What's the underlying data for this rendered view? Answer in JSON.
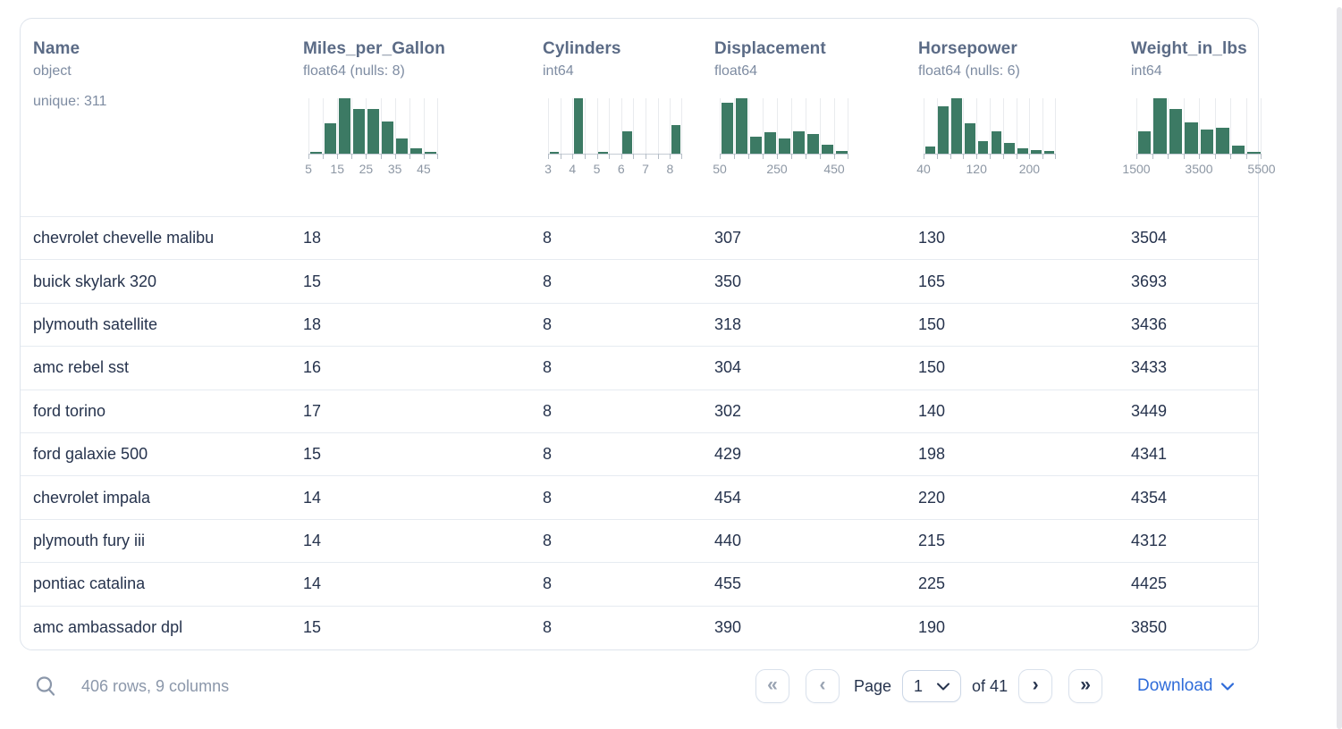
{
  "table": {
    "columns": [
      {
        "name": "Name",
        "dtype": "object",
        "extra": "unique: 311"
      },
      {
        "name": "Miles_per_Gallon",
        "dtype": "float64 (nulls: 8)",
        "histogram": {
          "type": "bar",
          "heights": [
            3,
            55,
            100,
            80,
            80,
            58,
            28,
            10,
            3
          ],
          "ticks": [
            {
              "label": "5",
              "at": 0
            },
            {
              "label": "15",
              "at": 2
            },
            {
              "label": "25",
              "at": 4
            },
            {
              "label": "35",
              "at": 6
            },
            {
              "label": "45",
              "at": 8
            }
          ]
        }
      },
      {
        "name": "Cylinders",
        "dtype": "int64",
        "histogram": {
          "type": "bar",
          "heights": [
            3,
            0,
            100,
            0,
            2,
            0,
            40,
            0,
            0,
            0,
            52
          ],
          "ticks": [
            {
              "label": "3",
              "at": 0
            },
            {
              "label": "4",
              "at": 2
            },
            {
              "label": "5",
              "at": 4
            },
            {
              "label": "6",
              "at": 6
            },
            {
              "label": "7",
              "at": 8
            },
            {
              "label": "8",
              "at": 10
            }
          ]
        }
      },
      {
        "name": "Displacement",
        "dtype": "float64",
        "histogram": {
          "type": "bar",
          "heights": [
            92,
            100,
            30,
            38,
            27,
            40,
            36,
            16,
            5
          ],
          "ticks": [
            {
              "label": "50",
              "at": 0
            },
            {
              "label": "250",
              "at": 4
            },
            {
              "label": "450",
              "at": 8
            }
          ]
        }
      },
      {
        "name": "Horsepower",
        "dtype": "float64 (nulls: 6)",
        "histogram": {
          "type": "bar",
          "heights": [
            13,
            85,
            100,
            55,
            22,
            40,
            20,
            10,
            6,
            5
          ],
          "ticks": [
            {
              "label": "40",
              "at": 0
            },
            {
              "label": "120",
              "at": 4
            },
            {
              "label": "200",
              "at": 8
            }
          ]
        }
      },
      {
        "name": "Weight_in_lbs",
        "dtype": "int64",
        "histogram": {
          "type": "bar",
          "heights": [
            40,
            100,
            80,
            57,
            43,
            46,
            15,
            3
          ],
          "ticks": [
            {
              "label": "1500",
              "at": 0
            },
            {
              "label": "3500",
              "at": 4
            },
            {
              "label": "5500",
              "at": 8
            }
          ]
        }
      }
    ],
    "rows": [
      [
        "chevrolet chevelle malibu",
        "18",
        "8",
        "307",
        "130",
        "3504"
      ],
      [
        "buick skylark 320",
        "15",
        "8",
        "350",
        "165",
        "3693"
      ],
      [
        "plymouth satellite",
        "18",
        "8",
        "318",
        "150",
        "3436"
      ],
      [
        "amc rebel sst",
        "16",
        "8",
        "304",
        "150",
        "3433"
      ],
      [
        "ford torino",
        "17",
        "8",
        "302",
        "140",
        "3449"
      ],
      [
        "ford galaxie 500",
        "15",
        "8",
        "429",
        "198",
        "4341"
      ],
      [
        "chevrolet impala",
        "14",
        "8",
        "454",
        "220",
        "4354"
      ],
      [
        "plymouth fury iii",
        "14",
        "8",
        "440",
        "215",
        "4312"
      ],
      [
        "pontiac catalina",
        "14",
        "8",
        "455",
        "225",
        "4425"
      ],
      [
        "amc ambassador dpl",
        "15",
        "8",
        "390",
        "190",
        "3850"
      ]
    ]
  },
  "footer": {
    "summary": "406 rows, 9 columns",
    "page_label": "Page",
    "page_value": "1",
    "of_label": "of 41",
    "download_label": "Download",
    "icons": {
      "first": "«",
      "prev": "‹",
      "next": "›",
      "last": "»"
    }
  },
  "colors": {
    "bar_green": "#3c7a64",
    "accent_blue": "#2e6bd9"
  }
}
